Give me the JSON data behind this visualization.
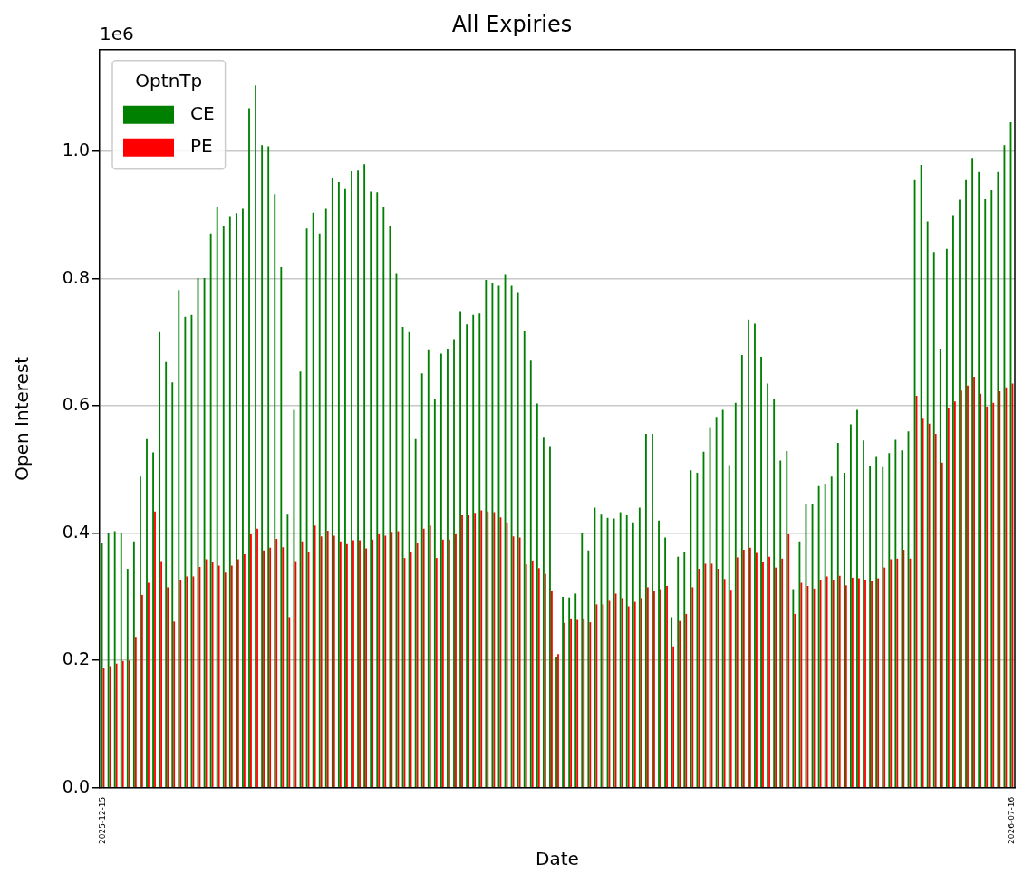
{
  "chart_data": {
    "type": "bar",
    "title": "All Expiries",
    "xlabel": "Date",
    "ylabel": "Open Interest",
    "legend_title": "OptnTp",
    "legend": "top left",
    "grid": "y",
    "annotations": [
      "1e6"
    ],
    "categories": [
      "2025-12-15",
      null,
      null,
      null,
      null,
      null,
      null,
      null,
      null,
      null,
      null,
      null,
      null,
      null,
      null,
      null,
      null,
      null,
      null,
      null,
      null,
      null,
      null,
      null,
      null,
      null,
      null,
      null,
      null,
      null,
      null,
      null,
      null,
      null,
      null,
      null,
      null,
      null,
      null,
      null,
      null,
      null,
      null,
      null,
      null,
      null,
      null,
      null,
      null,
      null,
      null,
      null,
      null,
      null,
      null,
      null,
      null,
      null,
      null,
      null,
      null,
      null,
      null,
      null,
      null,
      null,
      null,
      null,
      null,
      null,
      null,
      null,
      null,
      null,
      null,
      null,
      null,
      null,
      null,
      null,
      null,
      null,
      null,
      null,
      null,
      null,
      null,
      null,
      null,
      null,
      null,
      null,
      null,
      null,
      null,
      null,
      null,
      null,
      null,
      null,
      null,
      null,
      null,
      null,
      null,
      null,
      null,
      null,
      null,
      null,
      null,
      null,
      null,
      null,
      null,
      null,
      null,
      null,
      null,
      null,
      null,
      null,
      null,
      null,
      null,
      null,
      null,
      null,
      null,
      null,
      null,
      null,
      null,
      null,
      null,
      null,
      null,
      null,
      null,
      null,
      null,
      null,
      "2026-07-16"
    ],
    "ylim": [
      0,
      1.16
    ],
    "yticks": [
      {
        "value": 0,
        "label": "0.0"
      },
      0.2,
      0.4,
      0.6,
      0.8,
      {
        "value": 1,
        "label": "1.0"
      }
    ],
    "series": [
      {
        "name": "CE",
        "color": "#008000",
        "values": [
          0.384,
          0.401,
          0.403,
          0.4,
          0.344,
          0.387,
          0.489,
          0.548,
          0.527,
          0.716,
          0.669,
          0.637,
          0.782,
          0.74,
          0.743,
          0.801,
          0.801,
          0.871,
          0.913,
          0.882,
          0.897,
          0.903,
          0.91,
          1.068,
          1.104,
          1.01,
          1.008,
          0.933,
          0.818,
          0.429,
          0.594,
          0.654,
          0.879,
          0.904,
          0.871,
          0.91,
          0.959,
          0.952,
          0.941,
          0.969,
          0.97,
          0.98,
          0.937,
          0.936,
          0.913,
          0.882,
          0.809,
          0.724,
          0.716,
          0.548,
          0.651,
          0.689,
          0.611,
          0.682,
          0.69,
          0.705,
          0.749,
          0.728,
          0.743,
          0.745,
          0.798,
          0.793,
          0.789,
          0.806,
          0.789,
          0.779,
          0.718,
          0.671,
          0.604,
          0.55,
          0.537,
          0.206,
          0.3,
          0.299,
          0.305,
          0.4,
          0.373,
          0.44,
          0.429,
          0.424,
          0.423,
          0.433,
          0.428,
          0.417,
          0.44,
          0.556,
          0.556,
          0.42,
          0.393,
          0.268,
          0.363,
          0.37,
          0.499,
          0.495,
          0.528,
          0.567,
          0.583,
          0.594,
          0.507,
          0.605,
          0.68,
          0.736,
          0.729,
          0.677,
          0.635,
          0.611,
          0.514,
          0.529,
          0.312,
          0.387,
          0.445,
          0.445,
          0.474,
          0.478,
          0.489,
          0.542,
          0.495,
          0.571,
          0.594,
          0.546,
          0.506,
          0.52,
          0.504,
          0.526,
          0.547,
          0.53,
          0.56,
          0.955,
          0.979,
          0.89,
          0.842,
          0.69,
          0.847,
          0.9,
          0.924,
          0.955,
          0.99,
          0.968,
          0.925,
          0.939,
          0.968,
          1.01,
          1.046
        ]
      },
      {
        "name": "PE",
        "color": "#ff0000",
        "values": [
          0.188,
          0.191,
          0.195,
          0.199,
          0.2,
          0.237,
          0.303,
          0.322,
          0.434,
          0.356,
          0.315,
          0.261,
          0.327,
          0.332,
          0.332,
          0.347,
          0.359,
          0.354,
          0.349,
          0.338,
          0.349,
          0.359,
          0.367,
          0.398,
          0.407,
          0.373,
          0.377,
          0.391,
          0.378,
          0.268,
          0.356,
          0.387,
          0.371,
          0.412,
          0.395,
          0.404,
          0.396,
          0.387,
          0.383,
          0.389,
          0.389,
          0.376,
          0.39,
          0.398,
          0.396,
          0.402,
          0.403,
          0.361,
          0.371,
          0.384,
          0.407,
          0.412,
          0.361,
          0.39,
          0.39,
          0.398,
          0.428,
          0.428,
          0.432,
          0.436,
          0.434,
          0.433,
          0.425,
          0.417,
          0.395,
          0.393,
          0.351,
          0.357,
          0.345,
          0.336,
          0.31,
          0.21,
          0.259,
          0.266,
          0.265,
          0.266,
          0.26,
          0.288,
          0.288,
          0.295,
          0.305,
          0.298,
          0.285,
          0.292,
          0.298,
          0.315,
          0.31,
          0.312,
          0.317,
          0.222,
          0.262,
          0.273,
          0.315,
          0.344,
          0.352,
          0.352,
          0.344,
          0.328,
          0.311,
          0.362,
          0.374,
          0.377,
          0.369,
          0.354,
          0.363,
          0.346,
          0.36,
          0.398,
          0.273,
          0.322,
          0.317,
          0.313,
          0.327,
          0.332,
          0.327,
          0.333,
          0.318,
          0.33,
          0.329,
          0.327,
          0.324,
          0.329,
          0.346,
          0.359,
          0.36,
          0.374,
          0.36,
          0.616,
          0.58,
          0.572,
          0.556,
          0.511,
          0.597,
          0.607,
          0.624,
          0.632,
          0.646,
          0.619,
          0.599,
          0.605,
          0.623,
          0.629,
          0.635
        ]
      }
    ]
  }
}
